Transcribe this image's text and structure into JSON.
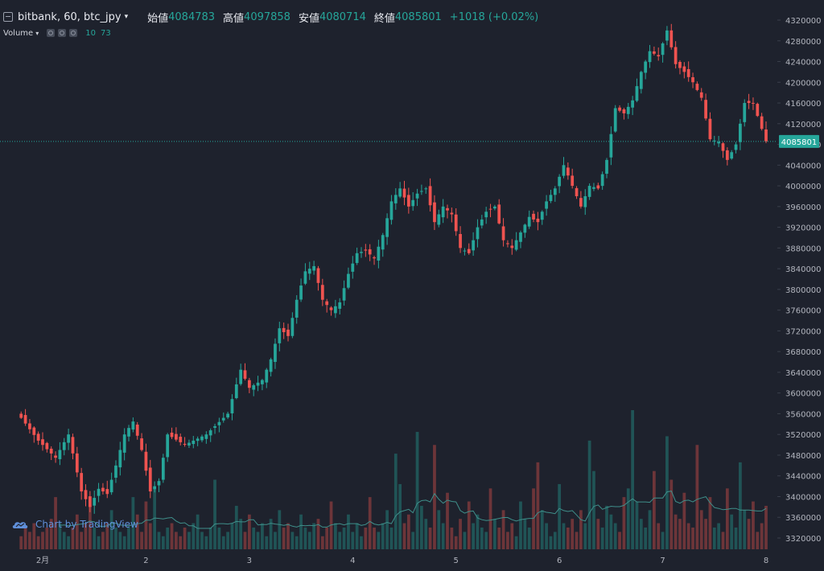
{
  "header": {
    "symbol": "bitbank, 60, btc_jpy",
    "open_label": "始値",
    "open_value": "4084783",
    "high_label": "高値",
    "high_value": "4097858",
    "low_label": "安値",
    "low_value": "4080714",
    "close_label": "終値",
    "close_value": "4085801",
    "change": "+1018 (+0.02%)"
  },
  "volume_indicator": {
    "label": "Volume",
    "param1": "10",
    "param2": "73"
  },
  "branding": {
    "text": "Chart by TradingView"
  },
  "colors": {
    "background": "#1e222d",
    "up": "#26a69a",
    "down": "#ef5350",
    "price_line": "#26a69a",
    "volume_ma": "#3f8f8a"
  },
  "chart_data": {
    "type": "candlestick",
    "interval_minutes": 60,
    "symbol": "btc_jpy",
    "y_axis": {
      "ticks": [
        3320000,
        3360000,
        3400000,
        3440000,
        3480000,
        3520000,
        3560000,
        3600000,
        3640000,
        3680000,
        3720000,
        3760000,
        3800000,
        3840000,
        3880000,
        3920000,
        3960000,
        4000000,
        4040000,
        4080000,
        4120000,
        4160000,
        4200000,
        4240000,
        4280000,
        4320000
      ],
      "range": [
        3300000,
        4330000
      ]
    },
    "x_axis": {
      "labels": [
        "2月",
        "2",
        "3",
        "4",
        "5",
        "6",
        "7",
        "8"
      ],
      "label_hours": [
        5,
        29,
        53,
        77,
        101,
        125,
        149,
        173
      ]
    },
    "last_price": 4085801,
    "last_price_label": "4085801",
    "anchors": [
      [
        0,
        3552000
      ],
      [
        4,
        3508000
      ],
      [
        8,
        3475000
      ],
      [
        11,
        3520000
      ],
      [
        14,
        3410000
      ],
      [
        16,
        3380000
      ],
      [
        18,
        3415000
      ],
      [
        20,
        3405000
      ],
      [
        22,
        3460000
      ],
      [
        24,
        3520000
      ],
      [
        26,
        3545000
      ],
      [
        28,
        3490000
      ],
      [
        30,
        3410000
      ],
      [
        32,
        3430000
      ],
      [
        34,
        3520000
      ],
      [
        38,
        3500000
      ],
      [
        43,
        3520000
      ],
      [
        48,
        3560000
      ],
      [
        51,
        3645000
      ],
      [
        53,
        3610000
      ],
      [
        56,
        3625000
      ],
      [
        58,
        3665000
      ],
      [
        60,
        3725000
      ],
      [
        62,
        3710000
      ],
      [
        64,
        3780000
      ],
      [
        66,
        3835000
      ],
      [
        68,
        3845000
      ],
      [
        70,
        3780000
      ],
      [
        72,
        3760000
      ],
      [
        74,
        3775000
      ],
      [
        76,
        3830000
      ],
      [
        78,
        3870000
      ],
      [
        80,
        3875000
      ],
      [
        82,
        3860000
      ],
      [
        84,
        3905000
      ],
      [
        86,
        3970000
      ],
      [
        88,
        3995000
      ],
      [
        90,
        3960000
      ],
      [
        92,
        3985000
      ],
      [
        94,
        3995000
      ],
      [
        96,
        3930000
      ],
      [
        98,
        3960000
      ],
      [
        100,
        3945000
      ],
      [
        102,
        3880000
      ],
      [
        104,
        3870000
      ],
      [
        106,
        3920000
      ],
      [
        108,
        3950000
      ],
      [
        110,
        3960000
      ],
      [
        112,
        3895000
      ],
      [
        114,
        3880000
      ],
      [
        116,
        3910000
      ],
      [
        118,
        3940000
      ],
      [
        120,
        3930000
      ],
      [
        122,
        3970000
      ],
      [
        124,
        3995000
      ],
      [
        126,
        4040000
      ],
      [
        128,
        4000000
      ],
      [
        130,
        3960000
      ],
      [
        132,
        4000000
      ],
      [
        134,
        3995000
      ],
      [
        136,
        4050000
      ],
      [
        138,
        4150000
      ],
      [
        140,
        4140000
      ],
      [
        142,
        4165000
      ],
      [
        144,
        4220000
      ],
      [
        146,
        4260000
      ],
      [
        148,
        4250000
      ],
      [
        150,
        4300000
      ],
      [
        152,
        4235000
      ],
      [
        154,
        4220000
      ],
      [
        156,
        4200000
      ],
      [
        158,
        4170000
      ],
      [
        160,
        4090000
      ],
      [
        162,
        4085000
      ],
      [
        164,
        4050000
      ],
      [
        166,
        4080000
      ],
      [
        168,
        4160000
      ],
      [
        170,
        4160000
      ],
      [
        172,
        4110000
      ],
      [
        173,
        4085801
      ]
    ],
    "volume": {
      "values": [
        3,
        5,
        4,
        6,
        3,
        4,
        5,
        7,
        12,
        6,
        4,
        3,
        5,
        8,
        4,
        6,
        10,
        5,
        3,
        4,
        6,
        9,
        5,
        4,
        3,
        5,
        12,
        8,
        4,
        11,
        6,
        14,
        4,
        3,
        5,
        6,
        4,
        3,
        5,
        4,
        6,
        8,
        4,
        3,
        5,
        16,
        5,
        3,
        4,
        6,
        10,
        7,
        4,
        8,
        5,
        4,
        6,
        3,
        7,
        4,
        9,
        5,
        6,
        4,
        3,
        8,
        5,
        4,
        6,
        7,
        3,
        5,
        11,
        6,
        4,
        5,
        8,
        4,
        6,
        3,
        5,
        12,
        5,
        4,
        6,
        9,
        5,
        22,
        15,
        6,
        8,
        4,
        27,
        10,
        7,
        5,
        24,
        9,
        6,
        13,
        5,
        3,
        7,
        4,
        11,
        6,
        8,
        5,
        4,
        14,
        7,
        5,
        9,
        4,
        6,
        3,
        11,
        7,
        5,
        14,
        20,
        9,
        6,
        3,
        4,
        15,
        6,
        5,
        7,
        4,
        9,
        6,
        25,
        18,
        7,
        5,
        10,
        8,
        6,
        4,
        12,
        14,
        32,
        11,
        7,
        5,
        9,
        18,
        6,
        4,
        26,
        16,
        8,
        7,
        13,
        6,
        5,
        24,
        9,
        7,
        12,
        5,
        6,
        4,
        14,
        8,
        5,
        20,
        9,
        7,
        11,
        4,
        6,
        10
      ],
      "ma_period": 10
    }
  }
}
